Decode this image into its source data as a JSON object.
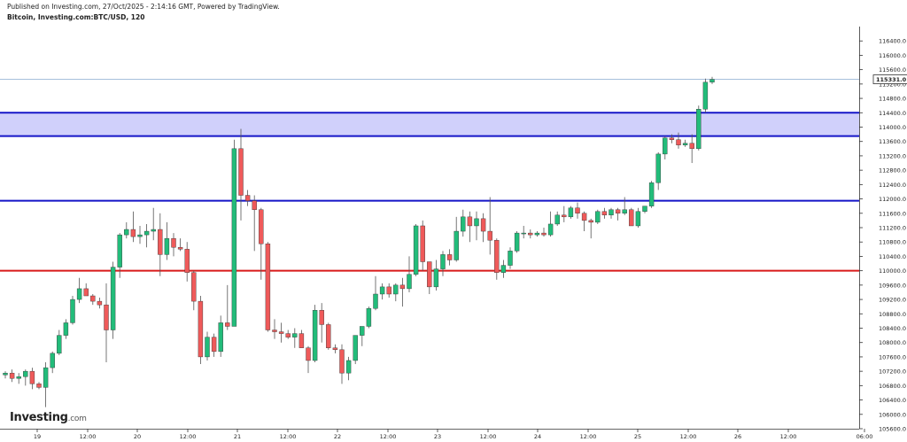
{
  "header": {
    "published": "Published on Investing.com, 27/Oct/2025 - 2:14:16 GMT, Powered by TradingView.",
    "symbol": "Bitcoin, Investing.com:BTC/USD, 120"
  },
  "logo": {
    "main": "Investing",
    "suffix": ".com"
  },
  "chart_data": {
    "type": "candlestick",
    "timeframe_minutes": 120,
    "ylim": [
      105600,
      116800
    ],
    "y_ticks": [
      116400,
      116000,
      115600,
      115200,
      114800,
      114400,
      114000,
      113600,
      113200,
      112800,
      112400,
      112000,
      111600,
      111200,
      110800,
      110400,
      110000,
      109600,
      109200,
      108800,
      108400,
      108000,
      107600,
      107200,
      106800,
      106400,
      106000,
      105600
    ],
    "y_tick_labels": [
      "116400.0",
      "116000.0",
      "115600.0",
      "115200.0",
      "114800.0",
      "114400.0",
      "114000.0",
      "113600.0",
      "113200.0",
      "112800.0",
      "112400.0",
      "112000.0",
      "111600.0",
      "111200.0",
      "110800.0",
      "110400.0",
      "110000.0",
      "109600.0",
      "109200.0",
      "108800.0",
      "108400.0",
      "108000.0",
      "107600.0",
      "107200.0",
      "106800.0",
      "106400.0",
      "106000.0",
      "105600.0"
    ],
    "x_ticks": [
      "19",
      "12:00",
      "20",
      "12:00",
      "21",
      "12:00",
      "22",
      "12:00",
      "23",
      "12:00",
      "24",
      "12:00",
      "25",
      "12:00",
      "26",
      "12:00",
      "06:00"
    ],
    "last_price": 115331.0,
    "last_price_label": "115331.0",
    "zone": {
      "from": 113750,
      "to": 114400,
      "color": "#d0d0fb",
      "border": "#1515c8"
    },
    "levels": [
      {
        "price": 111950,
        "color": "#1515c8"
      },
      {
        "price": 110000,
        "color": "#d91b1b"
      }
    ],
    "up_color": "#22bc7a",
    "down_color": "#ef5a5a",
    "candles": [
      [
        107100,
        107200,
        107000,
        107150
      ],
      [
        107150,
        107250,
        106900,
        107000
      ],
      [
        107000,
        107150,
        106850,
        107050
      ],
      [
        107050,
        107250,
        106800,
        107200
      ],
      [
        107200,
        107300,
        106700,
        106850
      ],
      [
        106850,
        106900,
        106700,
        106750
      ],
      [
        106750,
        107450,
        106200,
        107300
      ],
      [
        107300,
        107750,
        107150,
        107700
      ],
      [
        107700,
        108350,
        107650,
        108200
      ],
      [
        108200,
        108650,
        108100,
        108550
      ],
      [
        108550,
        109300,
        108500,
        109200
      ],
      [
        109200,
        109800,
        109100,
        109500
      ],
      [
        109500,
        109650,
        109300,
        109300
      ],
      [
        109300,
        109350,
        109050,
        109150
      ],
      [
        109150,
        109250,
        108950,
        109050
      ],
      [
        109050,
        109650,
        107450,
        108350
      ],
      [
        108350,
        110250,
        108100,
        110100
      ],
      [
        110100,
        111050,
        109800,
        111000
      ],
      [
        111000,
        111350,
        110900,
        111150
      ],
      [
        111150,
        111650,
        110800,
        110950
      ],
      [
        110950,
        111250,
        110750,
        111000
      ],
      [
        111000,
        111300,
        110650,
        111100
      ],
      [
        111100,
        111750,
        110850,
        111150
      ],
      [
        111150,
        111600,
        109850,
        110450
      ],
      [
        110450,
        111350,
        110300,
        110900
      ],
      [
        110900,
        111050,
        110400,
        110650
      ],
      [
        110650,
        110900,
        110550,
        110600
      ],
      [
        110600,
        110800,
        109700,
        109950
      ],
      [
        109950,
        110000,
        108900,
        109150
      ],
      [
        109150,
        109300,
        107400,
        107600
      ],
      [
        107600,
        108300,
        107500,
        108150
      ],
      [
        108150,
        108250,
        107600,
        107750
      ],
      [
        107750,
        108750,
        107600,
        108550
      ],
      [
        108550,
        109600,
        108350,
        108450
      ],
      [
        108450,
        113650,
        108450,
        113400
      ],
      [
        113400,
        113950,
        111400,
        112100
      ],
      [
        112100,
        112250,
        111800,
        111950
      ],
      [
        111950,
        112100,
        110550,
        111700
      ],
      [
        111700,
        111750,
        109750,
        110750
      ],
      [
        110750,
        110800,
        108300,
        108350
      ],
      [
        108350,
        108650,
        108100,
        108300
      ],
      [
        108300,
        108550,
        108000,
        108250
      ],
      [
        108250,
        108350,
        108100,
        108150
      ],
      [
        108150,
        108400,
        107850,
        108250
      ],
      [
        108250,
        108350,
        107850,
        107850
      ],
      [
        107850,
        107900,
        107150,
        107500
      ],
      [
        107500,
        109050,
        107450,
        108900
      ],
      [
        108900,
        109100,
        108000,
        108500
      ],
      [
        108500,
        108550,
        107800,
        107850
      ],
      [
        107850,
        107950,
        107700,
        107800
      ],
      [
        107800,
        107950,
        106850,
        107150
      ],
      [
        107150,
        107600,
        106950,
        107500
      ],
      [
        107500,
        108200,
        107400,
        108200
      ],
      [
        108200,
        108450,
        107900,
        108450
      ],
      [
        108450,
        109000,
        108400,
        108950
      ],
      [
        108950,
        109850,
        108900,
        109350
      ],
      [
        109350,
        109650,
        109200,
        109550
      ],
      [
        109550,
        109650,
        109250,
        109350
      ],
      [
        109350,
        109650,
        109150,
        109600
      ],
      [
        109600,
        109800,
        109000,
        109500
      ],
      [
        109500,
        110400,
        109400,
        109900
      ],
      [
        109900,
        111300,
        109850,
        111250
      ],
      [
        111250,
        111400,
        110000,
        110250
      ],
      [
        110250,
        110250,
        109350,
        109550
      ],
      [
        109550,
        110300,
        109450,
        110050
      ],
      [
        110050,
        110550,
        109850,
        110450
      ],
      [
        110450,
        110600,
        110150,
        110300
      ],
      [
        110300,
        111500,
        110250,
        111100
      ],
      [
        111100,
        111700,
        110950,
        111500
      ],
      [
        111500,
        111650,
        110800,
        111250
      ],
      [
        111250,
        111650,
        110850,
        111450
      ],
      [
        111450,
        111600,
        110800,
        111100
      ],
      [
        111100,
        112050,
        110450,
        110850
      ],
      [
        110850,
        110900,
        109750,
        109950
      ],
      [
        109950,
        110300,
        109800,
        110150
      ],
      [
        110150,
        110650,
        110050,
        110550
      ],
      [
        110550,
        111100,
        110500,
        111050
      ],
      [
        111050,
        111250,
        110900,
        111050
      ],
      [
        111050,
        111150,
        110900,
        111000
      ],
      [
        111000,
        111100,
        110950,
        111050
      ],
      [
        111050,
        111200,
        110950,
        111000
      ],
      [
        111000,
        111650,
        110950,
        111300
      ],
      [
        111300,
        111650,
        111250,
        111550
      ],
      [
        111550,
        111800,
        111350,
        111500
      ],
      [
        111500,
        111800,
        111450,
        111750
      ],
      [
        111750,
        111900,
        111450,
        111600
      ],
      [
        111600,
        111650,
        111100,
        111400
      ],
      [
        111400,
        111450,
        110900,
        111350
      ],
      [
        111350,
        111700,
        111300,
        111650
      ],
      [
        111650,
        111750,
        111450,
        111550
      ],
      [
        111550,
        111750,
        111450,
        111700
      ],
      [
        111700,
        111750,
        111400,
        111600
      ],
      [
        111600,
        112050,
        111550,
        111700
      ],
      [
        111700,
        111750,
        111250,
        111250
      ],
      [
        111250,
        111750,
        111200,
        111650
      ],
      [
        111650,
        111800,
        111600,
        111800
      ],
      [
        111800,
        112500,
        111750,
        112450
      ],
      [
        112450,
        113300,
        112250,
        113250
      ],
      [
        113250,
        113750,
        113100,
        113700
      ],
      [
        113700,
        113800,
        113550,
        113650
      ],
      [
        113650,
        113850,
        113400,
        113500
      ],
      [
        113500,
        113650,
        113450,
        113550
      ],
      [
        113550,
        113800,
        113000,
        113400
      ],
      [
        113400,
        114600,
        113350,
        114500
      ],
      [
        114500,
        115350,
        114400,
        115250
      ],
      [
        115250,
        115400,
        115200,
        115331
      ]
    ]
  }
}
